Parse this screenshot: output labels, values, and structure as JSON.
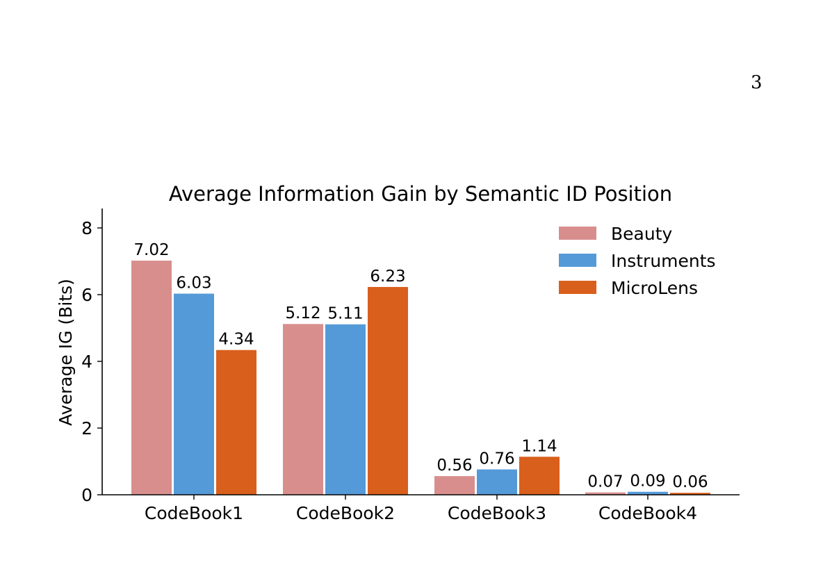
{
  "page": {
    "number": "3"
  },
  "chart_data": {
    "type": "bar",
    "title": "Average Information Gain by Semantic ID Position",
    "xlabel": "",
    "ylabel": "Average IG (Bits)",
    "ylim": [
      0,
      8.6
    ],
    "yticks": [
      0,
      2,
      4,
      6,
      8
    ],
    "categories": [
      "CodeBook1",
      "CodeBook2",
      "CodeBook3",
      "CodeBook4"
    ],
    "series": [
      {
        "name": "Beauty",
        "color": "#d98e8e",
        "values": [
          7.02,
          5.12,
          0.56,
          0.07
        ],
        "labels": [
          "7.02",
          "5.12",
          "0.56",
          "0.07"
        ]
      },
      {
        "name": "Instruments",
        "color": "#559ad8",
        "values": [
          6.03,
          5.11,
          0.76,
          0.09
        ],
        "labels": [
          "6.03",
          "5.11",
          "0.76",
          "0.09"
        ]
      },
      {
        "name": "MicroLens",
        "color": "#d95f1c",
        "values": [
          4.34,
          6.23,
          1.14,
          0.06
        ],
        "labels": [
          "4.34",
          "6.23",
          "1.14",
          "0.06"
        ]
      }
    ],
    "grid": false,
    "legend_position": "top-right"
  }
}
